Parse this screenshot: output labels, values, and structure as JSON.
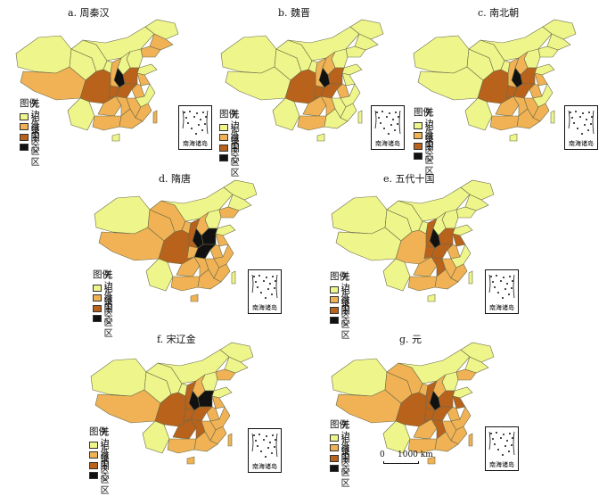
{
  "legend": {
    "title": "图例",
    "items": [
      {
        "label": "无记录",
        "color": "#eef58a"
      },
      {
        "label": "边缘区",
        "color": "#f0b254"
      },
      {
        "label": "外围区",
        "color": "#b8621c"
      },
      {
        "label": "中心区",
        "color": "#111111"
      }
    ]
  },
  "inset_label": "南海诸岛",
  "scale_label": "1000 km",
  "scale_zero": "0",
  "panels": [
    {
      "id": "a",
      "title": "a. 周秦汉",
      "scheme": [
        1,
        2,
        1,
        1,
        1,
        1,
        2,
        2,
        1,
        1,
        1,
        1,
        2,
        3,
        2,
        2,
        3,
        4,
        3,
        1,
        3,
        2,
        2,
        2,
        1,
        2,
        2,
        2,
        1,
        2
      ]
    },
    {
      "id": "b",
      "title": "b. 魏晋",
      "scheme": [
        1,
        1,
        1,
        1,
        1,
        1,
        1,
        1,
        1,
        1,
        1,
        2,
        2,
        3,
        1,
        2,
        3,
        4,
        3,
        1,
        3,
        2,
        2,
        1,
        1,
        1,
        2,
        1,
        1,
        1
      ]
    },
    {
      "id": "c",
      "title": "c. 南北朝",
      "scheme": [
        1,
        1,
        1,
        1,
        1,
        1,
        1,
        1,
        1,
        1,
        1,
        2,
        2,
        3,
        2,
        2,
        3,
        4,
        3,
        1,
        3,
        2,
        2,
        2,
        1,
        2,
        2,
        2,
        1,
        1
      ]
    },
    {
      "id": "d",
      "title": "d. 隋唐",
      "scheme": [
        1,
        2,
        2,
        2,
        1,
        1,
        1,
        2,
        2,
        1,
        1,
        2,
        3,
        4,
        2,
        2,
        4,
        4,
        3,
        1,
        2,
        2,
        2,
        2,
        2,
        2,
        2,
        2,
        2,
        1
      ]
    },
    {
      "id": "e",
      "title": "e. 五代十国",
      "scheme": [
        1,
        1,
        1,
        1,
        1,
        1,
        1,
        1,
        1,
        1,
        1,
        1,
        3,
        3,
        3,
        2,
        3,
        4,
        2,
        1,
        3,
        2,
        3,
        2,
        1,
        2,
        2,
        2,
        1,
        1
      ]
    },
    {
      "id": "f",
      "title": "f. 宋辽金",
      "scheme": [
        1,
        2,
        1,
        1,
        1,
        1,
        1,
        2,
        1,
        1,
        1,
        2,
        3,
        4,
        2,
        2,
        3,
        4,
        3,
        1,
        3,
        3,
        3,
        2,
        2,
        2,
        2,
        2,
        2,
        2
      ]
    },
    {
      "id": "g",
      "title": "g. 元",
      "scheme": [
        1,
        2,
        2,
        2,
        1,
        1,
        1,
        2,
        2,
        1,
        1,
        2,
        3,
        3,
        3,
        2,
        3,
        4,
        3,
        1,
        3,
        2,
        3,
        2,
        2,
        2,
        2,
        2,
        2,
        2
      ]
    }
  ]
}
